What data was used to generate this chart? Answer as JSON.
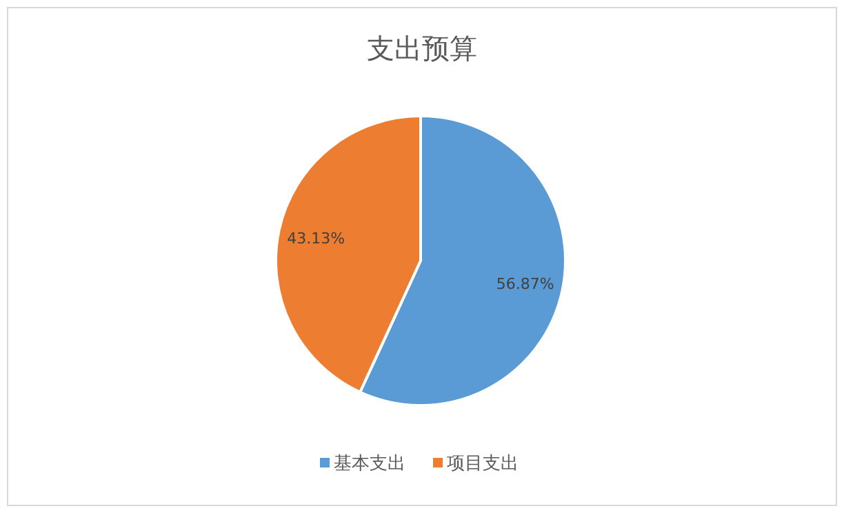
{
  "chart_data": {
    "type": "pie",
    "title": "支出预算",
    "categories": [
      "基本支出",
      "项目支出"
    ],
    "values": [
      56.87,
      43.13
    ],
    "colors": [
      "#5b9bd5",
      "#ed7d31"
    ],
    "value_labels": [
      "56.87%",
      "43.13%"
    ],
    "legend": "bottom"
  }
}
